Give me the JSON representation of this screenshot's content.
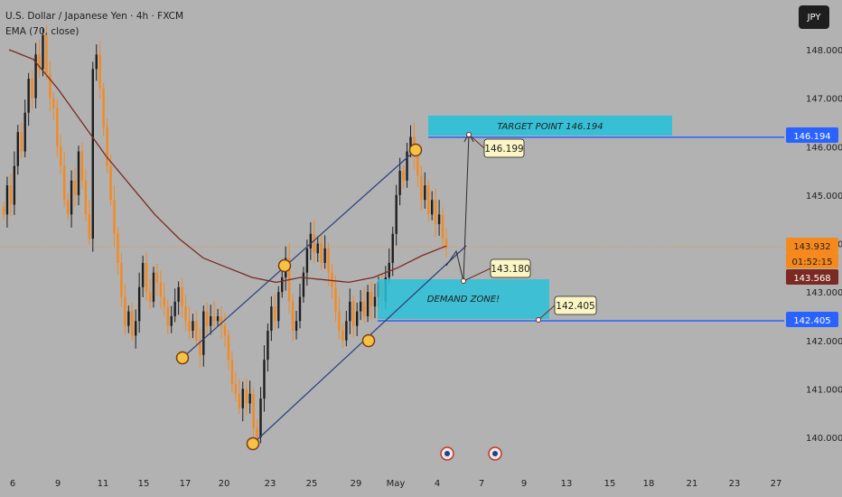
{
  "header": {
    "symbol_line": "U.S. Dollar / Japanese Yen · 4h · FXCM",
    "indicator_line": "EMA (70, close)"
  },
  "currency_button": "JPY",
  "colors": {
    "background": "#b2b2b2",
    "candle_up": "#1e1e1e",
    "candle_down": "#f6891e",
    "ema": "#7a2a22",
    "channel": "#2a3f7c",
    "zone": "#29c1d8",
    "level_line": "#2962ff",
    "marker": "#f6c244"
  },
  "annotations": {
    "target_zone_label": "TARGET POINT 146.194",
    "demand_zone_label": "DEMAND ZONE!",
    "callout_target": "146.199",
    "callout_mid": "143.180",
    "callout_low": "142.405"
  },
  "chart_data": {
    "type": "candlestick",
    "title": "U.S. Dollar / Japanese Yen · 4h · FXCM",
    "price_axis": {
      "ticks": [
        "148.000",
        "147.000",
        "146.000",
        "145.000",
        "144.000",
        "143.000",
        "142.000",
        "141.000",
        "140.000"
      ],
      "ylim": [
        139.5,
        148.5
      ],
      "price_labels": [
        {
          "text": "146.194",
          "value": 146.194,
          "style": "blue"
        },
        {
          "text": "143.932",
          "value": 143.932,
          "style": "orange"
        },
        {
          "text": "01:52:15",
          "value": 143.75,
          "style": "orange"
        },
        {
          "text": "143.568",
          "value": 143.568,
          "style": "maroon"
        },
        {
          "text": "142.405",
          "value": 142.405,
          "style": "blue"
        }
      ]
    },
    "time_axis": {
      "labels": [
        "6",
        "9",
        "11",
        "15",
        "17",
        "20",
        "23",
        "25",
        "29",
        "May",
        "4",
        "7",
        "9",
        "13",
        "15",
        "18",
        "21",
        "23",
        "27"
      ]
    },
    "ema_series": {
      "name": "EMA (70, close)",
      "values": [
        148.0,
        147.8,
        147.2,
        146.5,
        145.8,
        145.2,
        144.6,
        144.1,
        143.7,
        143.5,
        143.3,
        143.2,
        143.3,
        143.25,
        143.2,
        143.3,
        143.5,
        143.75,
        143.95
      ]
    },
    "candles_close": [
      144.6,
      145.2,
      144.8,
      145.6,
      146.3,
      145.9,
      146.7,
      147.4,
      147.0,
      147.9,
      147.6,
      148.3,
      147.5,
      147.0,
      146.8,
      146.0,
      145.6,
      144.9,
      144.6,
      145.3,
      145.0,
      145.9,
      145.3,
      144.6,
      144.1,
      147.6,
      147.9,
      147.2,
      146.4,
      145.6,
      144.9,
      144.2,
      143.6,
      142.9,
      142.3,
      142.6,
      142.1,
      142.4,
      143.1,
      143.6,
      143.0,
      142.8,
      143.4,
      143.2,
      142.9,
      142.7,
      142.3,
      142.5,
      142.8,
      143.1,
      142.7,
      142.4,
      142.2,
      142.4,
      142.0,
      141.7,
      142.6,
      142.3,
      142.5,
      142.4,
      142.5,
      142.3,
      142.1,
      141.6,
      141.1,
      140.9,
      140.6,
      141.0,
      140.7,
      140.9,
      140.2,
      140.0,
      140.8,
      141.6,
      142.2,
      142.7,
      142.4,
      143.0,
      143.3,
      143.7,
      142.8,
      142.2,
      142.4,
      142.9,
      143.4,
      143.9,
      144.2,
      143.8,
      144.0,
      143.6,
      143.9,
      143.4,
      143.1,
      142.6,
      142.2,
      142.0,
      142.4,
      142.8,
      142.3,
      142.6,
      142.8,
      142.5,
      143.0,
      142.7,
      142.9,
      143.2,
      142.8,
      143.3,
      143.6,
      144.2,
      145.0,
      145.5,
      145.3,
      145.9,
      146.2,
      145.8,
      145.4,
      144.9,
      145.2,
      144.6,
      144.9,
      144.4,
      144.6,
      144.1,
      143.9
    ],
    "channel": {
      "lower_line": [
        [
          140.0,
          139.9
        ],
        [
          145.1,
          142.6
        ]
      ],
      "upper_line": [
        [
          142.6,
          141.7
        ],
        [
          145.1,
          146.3
        ]
      ]
    }
  }
}
